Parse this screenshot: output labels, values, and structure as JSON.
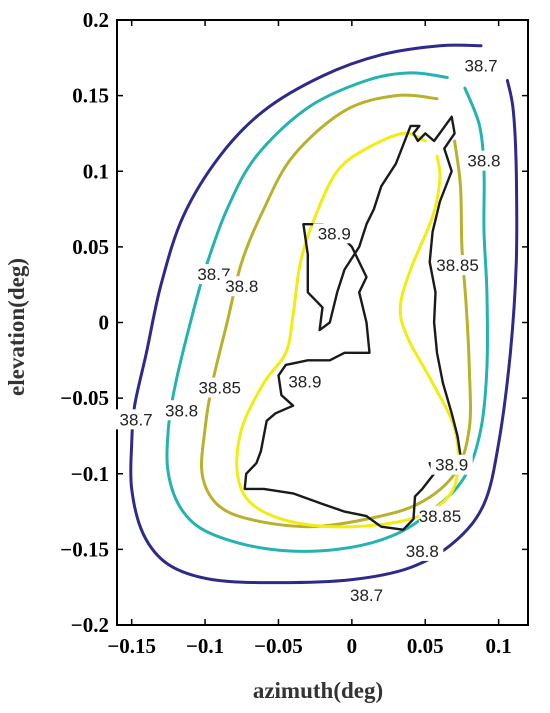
{
  "chart_data": {
    "type": "contour",
    "xlabel": "azimuth(deg)",
    "ylabel": "elevation(deg)",
    "xlim": [
      -0.16,
      0.12
    ],
    "ylim": [
      -0.2,
      0.2
    ],
    "xticks": [
      "−0.15",
      "−0.1",
      "−0.05",
      "0",
      "0.05",
      "0.1"
    ],
    "xtick_values": [
      -0.15,
      -0.1,
      -0.05,
      0,
      0.05,
      0.1
    ],
    "yticks": [
      "0.2",
      "0.15",
      "0.1",
      "0.05",
      "0",
      "−0.05",
      "−0.1",
      "−0.15",
      "−0.2"
    ],
    "ytick_values": [
      0.2,
      0.15,
      0.1,
      0.05,
      0,
      -0.05,
      -0.1,
      -0.15,
      -0.2
    ],
    "contours": [
      {
        "level": "38.7",
        "color": "#2e2a8c",
        "points": [
          [
            0.088,
            0.183
          ],
          [
            0.06,
            0.183
          ],
          [
            0.02,
            0.177
          ],
          [
            -0.02,
            0.163
          ],
          [
            -0.06,
            0.14
          ],
          [
            -0.09,
            0.11
          ],
          [
            -0.115,
            0.07
          ],
          [
            -0.13,
            0.025
          ],
          [
            -0.14,
            -0.02
          ],
          [
            -0.148,
            -0.055
          ],
          [
            -0.15,
            -0.08
          ],
          [
            -0.15,
            -0.11
          ],
          [
            -0.142,
            -0.14
          ],
          [
            -0.125,
            -0.16
          ],
          [
            -0.095,
            -0.17
          ],
          [
            -0.05,
            -0.172
          ],
          [
            0,
            -0.17
          ],
          [
            0.04,
            -0.162
          ],
          [
            0.07,
            -0.145
          ],
          [
            0.09,
            -0.12
          ],
          [
            0.1,
            -0.08
          ],
          [
            0.108,
            -0.02
          ],
          [
            0.112,
            0.04
          ],
          [
            0.112,
            0.1
          ],
          [
            0.11,
            0.14
          ],
          [
            0.106,
            0.16
          ]
        ],
        "labels": [
          {
            "text": "38.7",
            "x": 0.088,
            "y": 0.168
          },
          {
            "text": "38.7",
            "x": -0.094,
            "y": 0.03
          },
          {
            "text": "38.7",
            "x": -0.147,
            "y": -0.066
          },
          {
            "text": "38.7",
            "x": 0.01,
            "y": -0.182
          }
        ]
      },
      {
        "level": "38.8",
        "color": "#25b3b1",
        "points": [
          [
            0.065,
            0.162
          ],
          [
            0.04,
            0.165
          ],
          [
            0.01,
            0.16
          ],
          [
            -0.03,
            0.142
          ],
          [
            -0.065,
            0.11
          ],
          [
            -0.085,
            0.075
          ],
          [
            -0.1,
            0.035
          ],
          [
            -0.11,
            0
          ],
          [
            -0.12,
            -0.04
          ],
          [
            -0.125,
            -0.07
          ],
          [
            -0.125,
            -0.1
          ],
          [
            -0.115,
            -0.125
          ],
          [
            -0.095,
            -0.14
          ],
          [
            -0.055,
            -0.15
          ],
          [
            -0.01,
            -0.15
          ],
          [
            0.03,
            -0.14
          ],
          [
            0.06,
            -0.12
          ],
          [
            0.078,
            -0.1
          ],
          [
            0.088,
            -0.07
          ],
          [
            0.092,
            -0.03
          ],
          [
            0.092,
            0.02
          ],
          [
            0.09,
            0.06
          ],
          [
            0.09,
            0.1
          ],
          [
            0.087,
            0.13
          ],
          [
            0.077,
            0.155
          ]
        ],
        "labels": [
          {
            "text": "38.8",
            "x": 0.09,
            "y": 0.105
          },
          {
            "text": "38.8",
            "x": -0.075,
            "y": 0.022
          },
          {
            "text": "38.8",
            "x": -0.116,
            "y": -0.06
          },
          {
            "text": "38.8",
            "x": 0.048,
            "y": -0.153
          }
        ]
      },
      {
        "level": "38.85",
        "color": "#b9b12b",
        "points": [
          [
            0.058,
            0.148
          ],
          [
            0.03,
            0.15
          ],
          [
            -0.005,
            0.14
          ],
          [
            -0.04,
            0.11
          ],
          [
            -0.06,
            0.075
          ],
          [
            -0.075,
            0.04
          ],
          [
            -0.085,
            0
          ],
          [
            -0.095,
            -0.04
          ],
          [
            -0.1,
            -0.07
          ],
          [
            -0.102,
            -0.1
          ],
          [
            -0.092,
            -0.12
          ],
          [
            -0.07,
            -0.13
          ],
          [
            -0.03,
            -0.135
          ],
          [
            0.01,
            -0.13
          ],
          [
            0.045,
            -0.12
          ],
          [
            0.07,
            -0.1
          ],
          [
            0.08,
            -0.07
          ],
          [
            0.08,
            -0.03
          ],
          [
            0.078,
            0.01
          ],
          [
            0.075,
            0.05
          ],
          [
            0.074,
            0.09
          ],
          [
            0.07,
            0.12
          ]
        ],
        "labels": [
          {
            "text": "38.85",
            "x": 0.072,
            "y": 0.036
          },
          {
            "text": "38.85",
            "x": -0.09,
            "y": -0.045
          },
          {
            "text": "38.85",
            "x": 0.06,
            "y": -0.13
          }
        ]
      },
      {
        "level": "38.9",
        "color": "#f2ec10",
        "points": [
          [
            0.05,
            0.12
          ],
          [
            0.035,
            0.125
          ],
          [
            0.01,
            0.115
          ],
          [
            -0.01,
            0.1
          ],
          [
            -0.025,
            0.07
          ],
          [
            -0.035,
            0.04
          ],
          [
            -0.04,
            0.005
          ],
          [
            -0.045,
            -0.02
          ],
          [
            -0.06,
            -0.04
          ],
          [
            -0.075,
            -0.07
          ],
          [
            -0.078,
            -0.1
          ],
          [
            -0.068,
            -0.12
          ],
          [
            -0.04,
            -0.132
          ],
          [
            0,
            -0.135
          ],
          [
            0.04,
            -0.13
          ],
          [
            0.063,
            -0.118
          ],
          [
            0.072,
            -0.1
          ],
          [
            0.07,
            -0.07
          ],
          [
            0.055,
            -0.04
          ],
          [
            0.038,
            -0.01
          ],
          [
            0.033,
            0.01
          ],
          [
            0.04,
            0.035
          ],
          [
            0.055,
            0.07
          ],
          [
            0.06,
            0.095
          ],
          [
            0.058,
            0.11
          ]
        ],
        "labels": [
          {
            "text": "38.9",
            "x": -0.012,
            "y": 0.057
          },
          {
            "text": "38.9",
            "x": -0.032,
            "y": -0.041
          },
          {
            "text": "38.9",
            "x": 0.068,
            "y": -0.096
          }
        ]
      }
    ],
    "boundary": {
      "color": "#1a1a1a",
      "points": [
        [
          0.046,
          0.13
        ],
        [
          0.042,
          0.125
        ],
        [
          0.045,
          0.12
        ],
        [
          0.05,
          0.125
        ],
        [
          0.056,
          0.12
        ],
        [
          0.062,
          0.128
        ],
        [
          0.068,
          0.136
        ],
        [
          0.07,
          0.125
        ],
        [
          0.063,
          0.115
        ],
        [
          0.068,
          0.1
        ],
        [
          0.06,
          0.08
        ],
        [
          0.055,
          0.06
        ],
        [
          0.053,
          0.04
        ],
        [
          0.057,
          0.02
        ],
        [
          0.056,
          0
        ],
        [
          0.058,
          -0.02
        ],
        [
          0.062,
          -0.04
        ],
        [
          0.068,
          -0.06
        ],
        [
          0.072,
          -0.075
        ],
        [
          0.074,
          -0.088
        ],
        [
          0.068,
          -0.093
        ],
        [
          0.053,
          -0.093
        ],
        [
          0.056,
          -0.1
        ],
        [
          0.048,
          -0.11
        ],
        [
          0.043,
          -0.115
        ],
        [
          0.042,
          -0.13
        ],
        [
          0.035,
          -0.137
        ],
        [
          0.02,
          -0.135
        ],
        [
          0.01,
          -0.128
        ],
        [
          -0.005,
          -0.125
        ],
        [
          -0.02,
          -0.12
        ],
        [
          -0.04,
          -0.113
        ],
        [
          -0.06,
          -0.11
        ],
        [
          -0.073,
          -0.11
        ],
        [
          -0.072,
          -0.1
        ],
        [
          -0.065,
          -0.093
        ],
        [
          -0.062,
          -0.085
        ],
        [
          -0.06,
          -0.075
        ],
        [
          -0.058,
          -0.065
        ],
        [
          -0.052,
          -0.06
        ],
        [
          -0.04,
          -0.055
        ],
        [
          -0.048,
          -0.048
        ],
        [
          -0.05,
          -0.035
        ],
        [
          -0.045,
          -0.028
        ],
        [
          -0.03,
          -0.025
        ],
        [
          -0.015,
          -0.025
        ],
        [
          -0.005,
          -0.02
        ],
        [
          0.012,
          -0.02
        ],
        [
          0.01,
          0
        ],
        [
          0.005,
          0.02
        ],
        [
          0.01,
          0.03
        ],
        [
          0,
          0.05
        ],
        [
          -0.01,
          0.06
        ],
        [
          -0.02,
          0.065
        ],
        [
          -0.033,
          0.065
        ],
        [
          -0.03,
          0.045
        ],
        [
          -0.03,
          0.02
        ],
        [
          -0.02,
          0.01
        ],
        [
          -0.022,
          -0.005
        ],
        [
          -0.015,
          0
        ],
        [
          -0.01,
          0.02
        ],
        [
          -0.005,
          0.035
        ],
        [
          0.005,
          0.05
        ],
        [
          0.01,
          0.065
        ],
        [
          0.015,
          0.075
        ],
        [
          0.02,
          0.09
        ],
        [
          0.03,
          0.105
        ],
        [
          0.04,
          0.13
        ]
      ]
    }
  }
}
